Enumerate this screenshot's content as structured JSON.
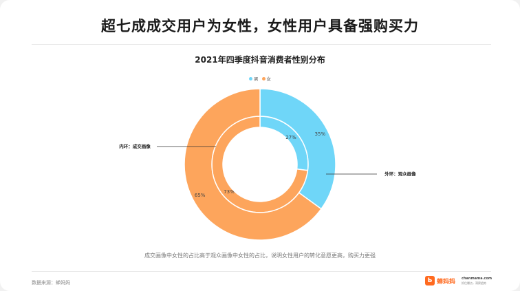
{
  "headline": "超七成成交用户为女性，女性用户具备强购买力",
  "chart_data": {
    "type": "pie",
    "title": "2021年四季度抖音消费者性别分布",
    "legend": [
      {
        "name": "男",
        "color": "#6fd6f8"
      },
      {
        "name": "女",
        "color": "#fda55c"
      }
    ],
    "legend_position": "top-center",
    "series": [
      {
        "name": "内环：成交画像",
        "ring": "inner",
        "labels": [
          "男",
          "女"
        ],
        "values": [
          27,
          73
        ],
        "value_labels": [
          "27%",
          "73%"
        ]
      },
      {
        "name": "外环：观众画像",
        "ring": "outer",
        "labels": [
          "男",
          "女"
        ],
        "values": [
          35,
          65
        ],
        "value_labels": [
          "35%",
          "65%"
        ]
      }
    ]
  },
  "annotations": {
    "inner": "内环：成交画像",
    "outer": "外环：观众画像"
  },
  "caption": "成交画像中女性的占比高于观众画像中女性的占比，说明女性用户的转化意愿更高，购买力更强",
  "source": "数据来源：蝉妈妈",
  "brand": {
    "logo_glyph": "Ь",
    "name": "蝉妈妈",
    "site": "chanmama.com",
    "slogan": "抓住爆点，洞察趋势"
  }
}
